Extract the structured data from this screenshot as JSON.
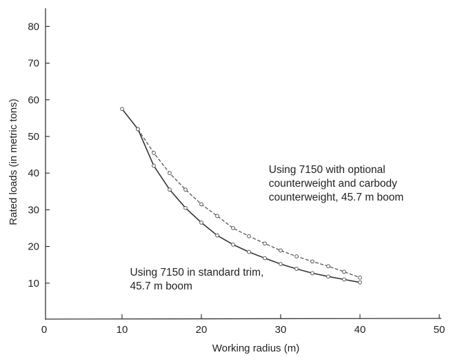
{
  "chart_data": {
    "type": "line",
    "title": "",
    "xlabel": "Working radius (m)",
    "ylabel": "Rated loads (in metric tons)",
    "xlim": [
      0,
      50
    ],
    "ylim": [
      0,
      85
    ],
    "x_ticks": [
      0,
      10,
      20,
      30,
      40,
      50
    ],
    "y_ticks": [
      10,
      20,
      30,
      40,
      50,
      60,
      70,
      80
    ],
    "grid": false,
    "legend": "none",
    "series": [
      {
        "style": "solid",
        "color": "#333333",
        "x": [
          10,
          12,
          14,
          16,
          18,
          20,
          22,
          24,
          26,
          28,
          30,
          32,
          34,
          36,
          38,
          40
        ],
        "y": [
          57.5,
          52,
          42,
          35.5,
          30.5,
          26.5,
          23,
          20.5,
          18.5,
          16.8,
          15.2,
          13.9,
          12.7,
          11.8,
          11,
          10.2
        ]
      },
      {
        "style": "dashed",
        "color": "#555555",
        "x": [
          12,
          14,
          16,
          18,
          20,
          22,
          24,
          26,
          28,
          30,
          32,
          34,
          36,
          38,
          40
        ],
        "y": [
          52,
          45.5,
          40,
          35.5,
          31.5,
          28.3,
          25,
          22.8,
          20.8,
          18.9,
          17.3,
          15.9,
          14.6,
          13.1,
          11.5
        ]
      }
    ],
    "annotations": [
      {
        "lines": [
          "Using 7150 with optional",
          "counterweight and carbody",
          "counterweight, 45.7 m boom"
        ],
        "x": 28.5,
        "y": 40
      },
      {
        "lines": [
          "Using 7150 in standard trim,",
          "45.7 m boom"
        ],
        "x": 11,
        "y": 12
      }
    ]
  }
}
